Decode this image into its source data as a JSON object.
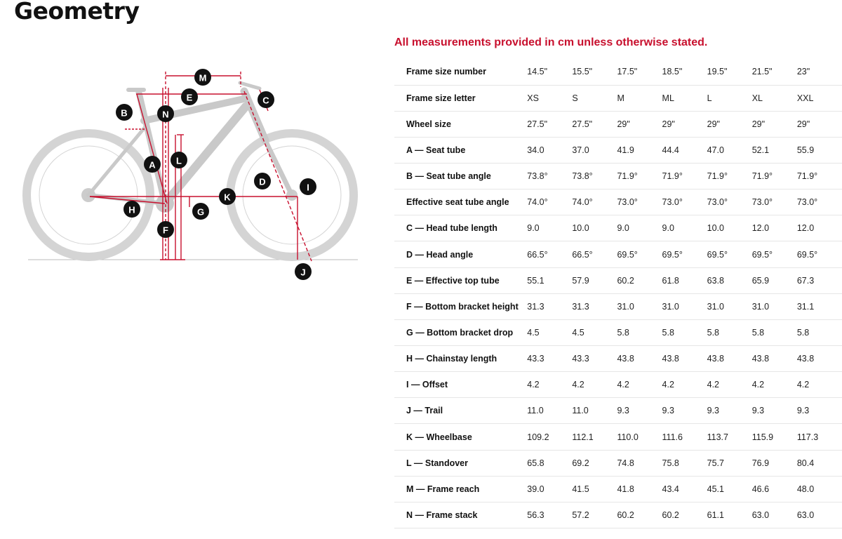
{
  "page": {
    "title": "Geometry",
    "note": "All measurements provided in cm unless otherwise stated."
  },
  "diagram": {
    "labels": [
      "M",
      "E",
      "C",
      "B",
      "N",
      "L",
      "A",
      "D",
      "I",
      "K",
      "H",
      "G",
      "F",
      "J"
    ]
  },
  "table": {
    "rows": [
      {
        "label": "Frame size number",
        "values": [
          "14.5\"",
          "15.5\"",
          "17.5\"",
          "18.5\"",
          "19.5\"",
          "21.5\"",
          "23\""
        ]
      },
      {
        "label": "Frame size letter",
        "values": [
          "XS",
          "S",
          "M",
          "ML",
          "L",
          "XL",
          "XXL"
        ]
      },
      {
        "label": "Wheel size",
        "values": [
          "27.5\"",
          "27.5\"",
          "29\"",
          "29\"",
          "29\"",
          "29\"",
          "29\""
        ]
      },
      {
        "label": "A — Seat tube",
        "values": [
          "34.0",
          "37.0",
          "41.9",
          "44.4",
          "47.0",
          "52.1",
          "55.9"
        ]
      },
      {
        "label": "B — Seat tube angle",
        "values": [
          "73.8°",
          "73.8°",
          "71.9°",
          "71.9°",
          "71.9°",
          "71.9°",
          "71.9°"
        ]
      },
      {
        "label": "Effective seat tube angle",
        "values": [
          "74.0°",
          "74.0°",
          "73.0°",
          "73.0°",
          "73.0°",
          "73.0°",
          "73.0°"
        ]
      },
      {
        "label": "C — Head tube length",
        "values": [
          "9.0",
          "10.0",
          "9.0",
          "9.0",
          "10.0",
          "12.0",
          "12.0"
        ]
      },
      {
        "label": "D — Head angle",
        "values": [
          "66.5°",
          "66.5°",
          "69.5°",
          "69.5°",
          "69.5°",
          "69.5°",
          "69.5°"
        ]
      },
      {
        "label": "E — Effective top tube",
        "values": [
          "55.1",
          "57.9",
          "60.2",
          "61.8",
          "63.8",
          "65.9",
          "67.3"
        ]
      },
      {
        "label": "F — Bottom bracket height",
        "values": [
          "31.3",
          "31.3",
          "31.0",
          "31.0",
          "31.0",
          "31.0",
          "31.1"
        ]
      },
      {
        "label": "G — Bottom bracket drop",
        "values": [
          "4.5",
          "4.5",
          "5.8",
          "5.8",
          "5.8",
          "5.8",
          "5.8"
        ]
      },
      {
        "label": "H — Chainstay length",
        "values": [
          "43.3",
          "43.3",
          "43.8",
          "43.8",
          "43.8",
          "43.8",
          "43.8"
        ]
      },
      {
        "label": "I — Offset",
        "values": [
          "4.2",
          "4.2",
          "4.2",
          "4.2",
          "4.2",
          "4.2",
          "4.2"
        ]
      },
      {
        "label": "J — Trail",
        "values": [
          "11.0",
          "11.0",
          "9.3",
          "9.3",
          "9.3",
          "9.3",
          "9.3"
        ]
      },
      {
        "label": "K — Wheelbase",
        "values": [
          "109.2",
          "112.1",
          "110.0",
          "111.6",
          "113.7",
          "115.9",
          "117.3"
        ]
      },
      {
        "label": "L — Standover",
        "values": [
          "65.8",
          "69.2",
          "74.8",
          "75.8",
          "75.7",
          "76.9",
          "80.4"
        ]
      },
      {
        "label": "M — Frame reach",
        "values": [
          "39.0",
          "41.5",
          "41.8",
          "43.4",
          "45.1",
          "46.6",
          "48.0"
        ]
      },
      {
        "label": "N — Frame stack",
        "values": [
          "56.3",
          "57.2",
          "60.2",
          "60.2",
          "61.1",
          "63.0",
          "63.0"
        ]
      }
    ]
  }
}
